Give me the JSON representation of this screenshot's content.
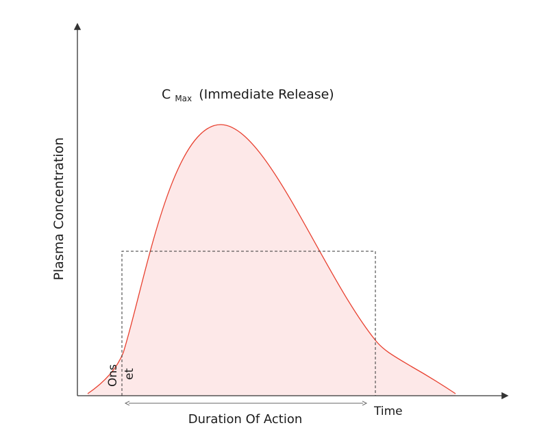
{
  "title": {
    "main": "C",
    "subscript": "Max",
    "rest": "(Immediate Release)"
  },
  "y_axis_label": "Plasma Concentration",
  "x_axis_label": "Time",
  "duration_label": "Duration Of Action",
  "onset_label": {
    "part1": "Ons",
    "part2": "et"
  },
  "colors": {
    "curve": "#e8402f",
    "fill": "#fde8e8",
    "axis": "#333333",
    "dashed": "#333333"
  }
}
